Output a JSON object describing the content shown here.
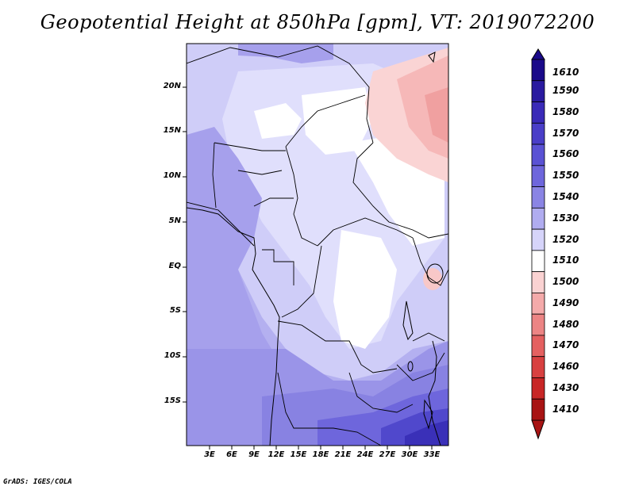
{
  "title": "Geopotential Height at 850hPa [gpm], VT: 2019072200",
  "credit": "GrADS: IGES/COLA",
  "map": {
    "lat_labels": [
      "20N",
      "15N",
      "10N",
      "5N",
      "EQ",
      "5S",
      "10S",
      "15S"
    ],
    "lon_labels": [
      "3E",
      "6E",
      "9E",
      "12E",
      "15E",
      "18E",
      "21E",
      "24E",
      "27E",
      "30E",
      "33E"
    ]
  },
  "colorbar": {
    "levels": [
      "1610",
      "1590",
      "1580",
      "1570",
      "1560",
      "1550",
      "1540",
      "1530",
      "1520",
      "1510",
      "1500",
      "1490",
      "1480",
      "1470",
      "1460",
      "1430",
      "1410"
    ],
    "colors": [
      "#1a0a8a",
      "#2a1aa0",
      "#3a2ab8",
      "#4a3ec8",
      "#5a52d4",
      "#6e66dc",
      "#8a84e4",
      "#b0acf0",
      "#d6d4fa",
      "#ffffff",
      "#fad2d2",
      "#f4aaaa",
      "#ec8484",
      "#e46060",
      "#d84040",
      "#c82626",
      "#a81414"
    ]
  }
}
